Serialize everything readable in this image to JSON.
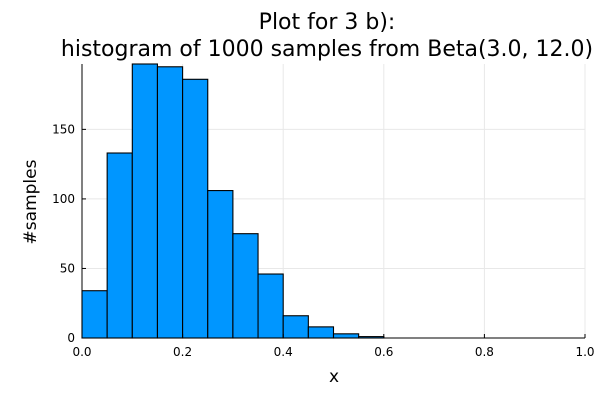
{
  "chart_data": {
    "type": "bar",
    "title_line1": "Plot for 3 b):",
    "title_line2": "histogram of 1000 samples from Beta(3.0, 12.0)",
    "xlabel": "x",
    "ylabel": "#samples",
    "xlim": [
      0,
      1
    ],
    "ylim": [
      0,
      197
    ],
    "xticks": [
      0.0,
      0.2,
      0.4,
      0.6,
      0.8,
      1.0
    ],
    "xtick_labels": [
      "0.0",
      "0.2",
      "0.4",
      "0.6",
      "0.8",
      "1.0"
    ],
    "yticks": [
      0,
      50,
      100,
      150
    ],
    "ytick_labels": [
      "0",
      "50",
      "100",
      "150"
    ],
    "grid": true,
    "legend": false,
    "bar_color": "#0096ff",
    "bin_width": 0.05,
    "bin_edges": [
      0.0,
      0.05,
      0.1,
      0.15,
      0.2,
      0.25,
      0.3,
      0.35,
      0.4,
      0.45,
      0.5,
      0.55,
      0.6
    ],
    "values": [
      34,
      133,
      197,
      195,
      186,
      106,
      75,
      46,
      16,
      8,
      3,
      1
    ]
  }
}
